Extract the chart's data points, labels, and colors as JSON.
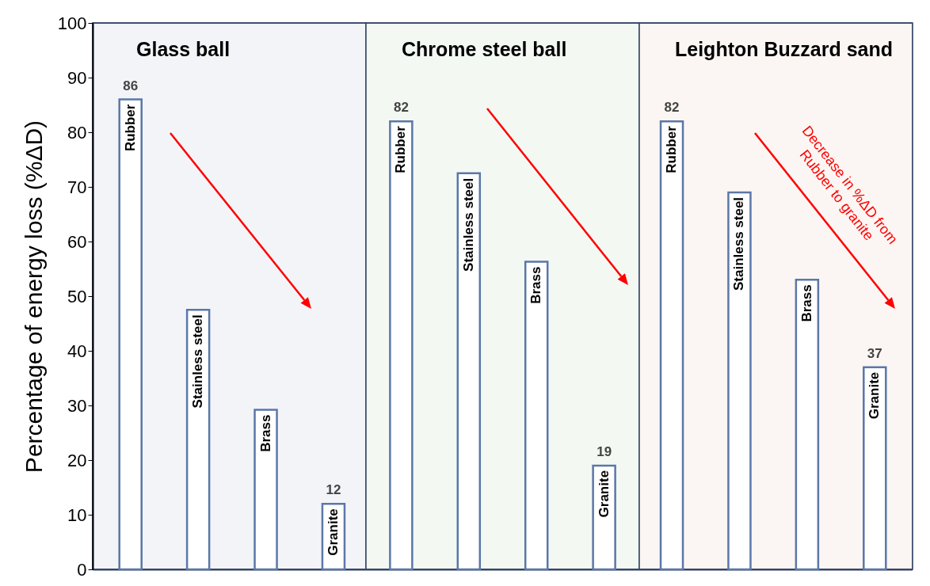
{
  "chart_data": {
    "type": "bar",
    "ylabel": "Percentage of energy loss (%ΔD)",
    "categories": [
      "Rubber",
      "Stainless steel",
      "Brass",
      "Granite",
      "Rubber",
      "Stainless steel",
      "Brass",
      "Granite",
      "Rubber",
      "Stainless steel",
      "Brass",
      "Granite"
    ],
    "values": [
      86,
      47.5,
      29.2,
      12,
      82,
      72.5,
      56.3,
      19,
      82,
      69,
      53,
      37
    ],
    "color": "#ffffff",
    "value_labels": [
      "86",
      null,
      null,
      "12",
      "82",
      null,
      null,
      "19",
      "82",
      null,
      null,
      "37"
    ],
    "ylim": [
      0,
      100
    ],
    "yticks": [
      0,
      10,
      20,
      30,
      40,
      50,
      60,
      70,
      80,
      90,
      100
    ],
    "grid": false,
    "tick_labels": "y",
    "annotations": [
      "Glass ball",
      "Chrome steel ball",
      "Leighton Buzzard sand",
      "Decrease in %ΔD from Rubber to granite"
    ]
  }
}
